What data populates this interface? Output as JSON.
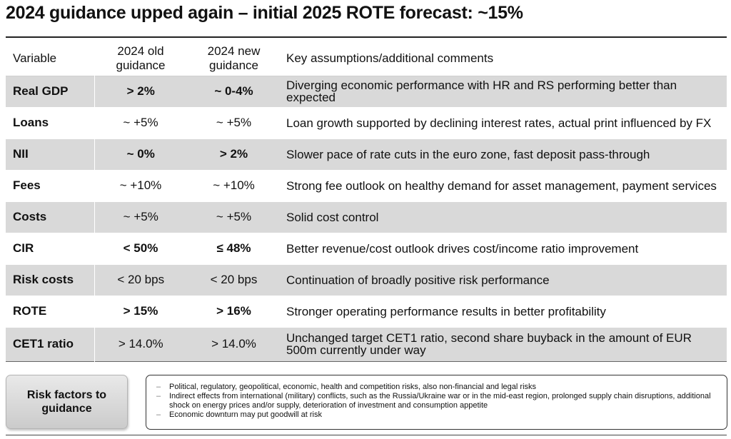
{
  "title": "2024 guidance upped again – initial 2025 ROTE forecast: ~15%",
  "table": {
    "headers": {
      "variable": "Variable",
      "old": "2024 old guidance",
      "new": "2024 new guidance",
      "comments": "Key assumptions/additional comments"
    },
    "rows": [
      {
        "variable": "Real GDP",
        "old": "> 2%",
        "new": "~ 0-4%",
        "comment": "Diverging economic performance with HR and RS performing better than expected",
        "bold": true
      },
      {
        "variable": "Loans",
        "old": "~ +5%",
        "new": "~ +5%",
        "comment": "Loan growth supported by declining interest rates, actual print influenced by FX",
        "bold": false
      },
      {
        "variable": "NII",
        "old": "~ 0%",
        "new": "> 2%",
        "comment": "Slower pace of rate cuts in the euro zone, fast deposit pass-through",
        "bold": true
      },
      {
        "variable": "Fees",
        "old": "~ +10%",
        "new": "~ +10%",
        "comment": "Strong fee outlook on healthy demand for asset management, payment services",
        "bold": false
      },
      {
        "variable": "Costs",
        "old": "~ +5%",
        "new": "~ +5%",
        "comment": "Solid cost control",
        "bold": false
      },
      {
        "variable": "CIR",
        "old": "< 50%",
        "new": "≤ 48%",
        "comment": "Better revenue/cost outlook drives cost/income ratio improvement",
        "bold": true
      },
      {
        "variable": "Risk costs",
        "old": "< 20 bps",
        "new": "< 20 bps",
        "comment": "Continuation of broadly positive risk performance",
        "bold": false
      },
      {
        "variable": "ROTE",
        "old": "> 15%",
        "new": "> 16%",
        "comment": "Stronger operating performance results in better profitability",
        "bold": true
      },
      {
        "variable": "CET1 ratio",
        "old": "> 14.0%",
        "new": "> 14.0%",
        "comment": "Unchanged target CET1 ratio, second share buyback in the amount of EUR 500m currently under way",
        "bold": false
      }
    ]
  },
  "risk": {
    "label": "Risk factors to guidance",
    "items": [
      "Political, regulatory, geopolitical, economic, health and competition risks, also non-financial and legal risks",
      "Indirect effects from international (military) conflicts, such as the Russia/Ukraine war or in the mid-east region, prolonged supply chain disruptions, additional shock on energy prices and/or supply, deterioration of investment and consumption appetite",
      "Economic downturn may put goodwill at risk"
    ]
  }
}
